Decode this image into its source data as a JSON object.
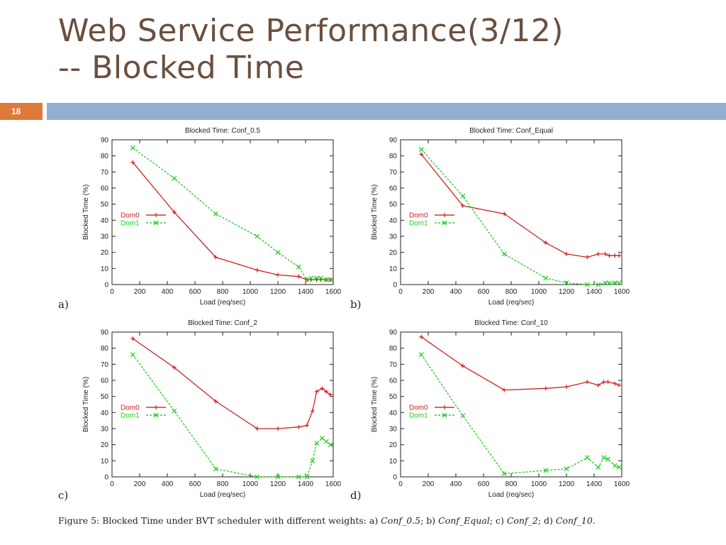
{
  "slide": {
    "title_line1": "Web Service Performance(3/12)",
    "title_line2": "-- Blocked Time",
    "number": "18"
  },
  "caption": {
    "prefix": "Figure 5: Blocked Time under BVT scheduler with different weights: a) ",
    "a": "Conf_0.5",
    "sep1": "; b) ",
    "b": "Conf_Equal",
    "sep2": "; c) ",
    "c": "Conf_2",
    "sep3": "; d) ",
    "d": "Conf_10",
    "end": "."
  },
  "colors": {
    "dom0": "#cc2222",
    "dom1": "#22cc22",
    "title": "#6b4f3f",
    "accent": "#e07a3a",
    "bar": "#8fb0cf"
  },
  "chart_data": [
    {
      "panel": "a)",
      "type": "line",
      "title": "Blocked Time: Conf_0.5",
      "xlabel": "Load (req/sec)",
      "ylabel": "Blocked Time (%)",
      "xlim": [
        0,
        1600
      ],
      "ylim": [
        0,
        90
      ],
      "xticks": [
        0,
        200,
        400,
        600,
        800,
        1000,
        1200,
        1400,
        1600
      ],
      "yticks": [
        0,
        10,
        20,
        30,
        40,
        50,
        60,
        70,
        80,
        90
      ],
      "legend_position": "left-middle",
      "series": [
        {
          "name": "Dom0",
          "x": [
            150,
            450,
            750,
            1050,
            1200,
            1350,
            1410,
            1440,
            1480,
            1510,
            1550,
            1580
          ],
          "y": [
            76,
            45,
            17,
            9,
            6,
            5,
            3,
            3,
            3,
            3,
            3,
            3
          ]
        },
        {
          "name": "Dom1",
          "x": [
            150,
            450,
            750,
            1050,
            1200,
            1350,
            1410,
            1440,
            1480,
            1510,
            1550,
            1580
          ],
          "y": [
            85,
            66,
            44,
            30,
            20,
            11,
            3,
            4,
            4,
            4,
            3,
            3
          ]
        }
      ]
    },
    {
      "panel": "b)",
      "type": "line",
      "title": "Blocked Time: Conf_Equal",
      "xlabel": "Load (req/sec)",
      "ylabel": "Blocked Time (%)",
      "xlim": [
        0,
        1600
      ],
      "ylim": [
        0,
        90
      ],
      "xticks": [
        0,
        200,
        400,
        600,
        800,
        1000,
        1200,
        1400,
        1600
      ],
      "yticks": [
        0,
        10,
        20,
        30,
        40,
        50,
        60,
        70,
        80,
        90
      ],
      "legend_position": "left-middle",
      "series": [
        {
          "name": "Dom0",
          "x": [
            150,
            450,
            750,
            1050,
            1200,
            1350,
            1430,
            1480,
            1510,
            1550,
            1580
          ],
          "y": [
            81,
            49,
            44,
            26,
            19,
            17,
            19,
            19,
            18,
            18,
            18
          ]
        },
        {
          "name": "Dom1",
          "x": [
            150,
            450,
            750,
            1050,
            1200,
            1350,
            1430,
            1480,
            1510,
            1550,
            1580
          ],
          "y": [
            84,
            55,
            19,
            4,
            1,
            0,
            0,
            1,
            1,
            1,
            1
          ]
        }
      ]
    },
    {
      "panel": "c)",
      "type": "line",
      "title": "Blocked Time: Conf_2",
      "xlabel": "Load (req/sec)",
      "ylabel": "Blocked Time (%)",
      "xlim": [
        0,
        1600
      ],
      "ylim": [
        0,
        90
      ],
      "xticks": [
        0,
        200,
        400,
        600,
        800,
        1000,
        1200,
        1400,
        1600
      ],
      "yticks": [
        0,
        10,
        20,
        30,
        40,
        50,
        60,
        70,
        80,
        90
      ],
      "legend_position": "left-middle",
      "series": [
        {
          "name": "Dom0",
          "x": [
            150,
            450,
            750,
            1050,
            1200,
            1350,
            1410,
            1450,
            1480,
            1520,
            1550,
            1580
          ],
          "y": [
            86,
            68,
            47,
            30,
            30,
            31,
            32,
            41,
            53,
            55,
            53,
            51
          ]
        },
        {
          "name": "Dom1",
          "x": [
            150,
            450,
            750,
            1050,
            1200,
            1350,
            1410,
            1450,
            1480,
            1520,
            1550,
            1580
          ],
          "y": [
            76,
            41,
            5,
            0,
            0,
            0,
            0,
            10,
            21,
            24,
            22,
            20
          ]
        }
      ]
    },
    {
      "panel": "d)",
      "type": "line",
      "title": "Blocked Time: Conf_10",
      "xlabel": "Load (req/sec)",
      "ylabel": "Blocked Time (%)",
      "xlim": [
        0,
        1600
      ],
      "ylim": [
        0,
        90
      ],
      "xticks": [
        0,
        200,
        400,
        600,
        800,
        1000,
        1200,
        1400,
        1600
      ],
      "yticks": [
        0,
        10,
        20,
        30,
        40,
        50,
        60,
        70,
        80,
        90
      ],
      "legend_position": "left-middle",
      "series": [
        {
          "name": "Dom0",
          "x": [
            150,
            450,
            750,
            1050,
            1200,
            1350,
            1430,
            1470,
            1500,
            1550,
            1580
          ],
          "y": [
            87,
            69,
            54,
            55,
            56,
            59,
            57,
            59,
            59,
            58,
            57
          ]
        },
        {
          "name": "Dom1",
          "x": [
            150,
            450,
            750,
            1050,
            1200,
            1350,
            1430,
            1470,
            1500,
            1550,
            1580
          ],
          "y": [
            76,
            38,
            2,
            4,
            5,
            12,
            6,
            12,
            11,
            7,
            6
          ]
        }
      ]
    }
  ]
}
